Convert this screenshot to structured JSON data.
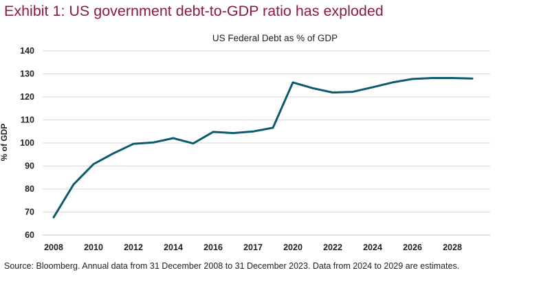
{
  "exhibit_title": "Exhibit 1: US government debt-to-GDP ratio has exploded",
  "source_note": "Source: Bloomberg. Annual data from 31 December 2008 to 31 December 2023. Data from 2024 to 2029 are estimates.",
  "colors": {
    "title": "#8b1a3c",
    "line": "#0d5a6e",
    "grid": "#d9d9d9"
  },
  "chart_data": {
    "type": "line",
    "title": "US Federal Debt as % of GDP",
    "xlabel": "",
    "ylabel": "% of GDP",
    "xlim": [
      2008,
      2029
    ],
    "ylim": [
      60,
      140
    ],
    "yticks": [
      60,
      70,
      80,
      90,
      100,
      110,
      120,
      130,
      140
    ],
    "xtick_labels": [
      "2008",
      "2010",
      "2012",
      "2014",
      "2016",
      "2017",
      "2020",
      "2022",
      "2024",
      "2026",
      "2028"
    ],
    "grid": true,
    "series": [
      {
        "x": [
          2008,
          2009,
          2010,
          2011,
          2012,
          2013,
          2014,
          2015,
          2016,
          2017,
          2018,
          2019,
          2020,
          2021,
          2022,
          2023,
          2024,
          2025,
          2026,
          2027,
          2028,
          2029
        ],
        "values": [
          67.7,
          82.0,
          90.8,
          95.5,
          99.6,
          100.2,
          102.1,
          99.8,
          104.8,
          104.3,
          105.0,
          106.6,
          126.3,
          123.8,
          121.9,
          122.2,
          124.2,
          126.3,
          127.8,
          128.2,
          128.2,
          128.0
        ]
      }
    ]
  }
}
